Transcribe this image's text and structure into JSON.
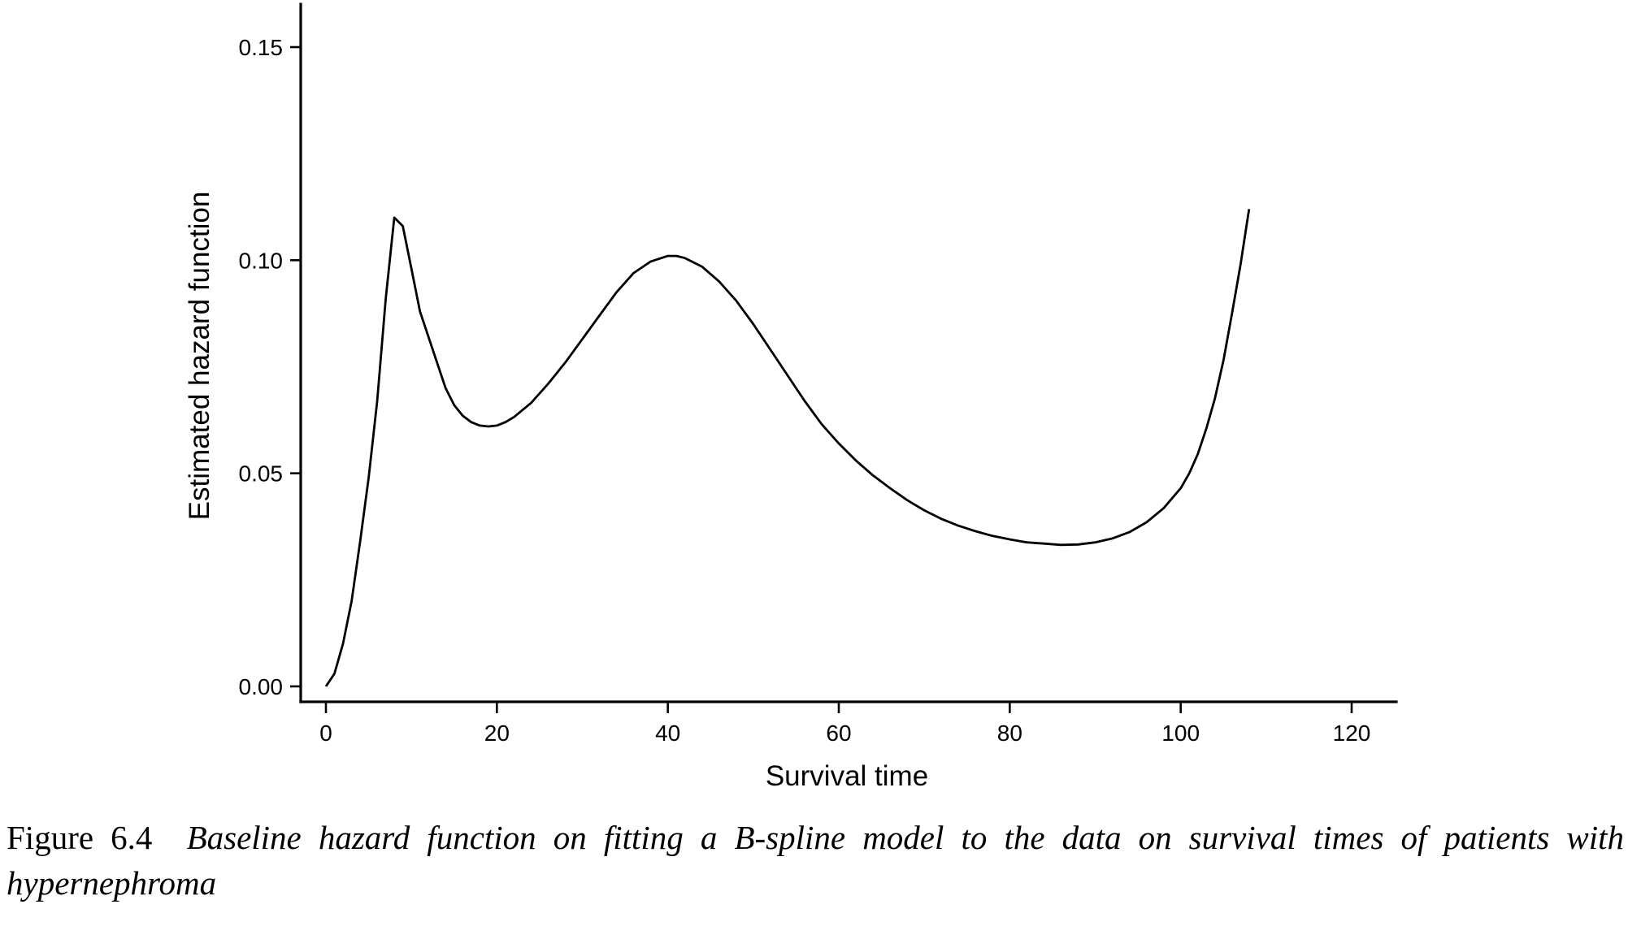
{
  "chart_data": {
    "type": "line",
    "title": "",
    "xlabel": "Survival time",
    "ylabel": "Estimated hazard function",
    "xlim": [
      -3,
      125
    ],
    "ylim": [
      -0.004,
      0.16
    ],
    "xticks": [
      0,
      20,
      40,
      60,
      80,
      100,
      120
    ],
    "yticks": [
      0.0,
      0.05,
      0.1,
      0.15
    ],
    "ytick_labels": [
      "0.00",
      "0.05",
      "0.10",
      "0.15"
    ],
    "grid": false,
    "legend": "none",
    "series": [
      {
        "x": [
          0,
          1,
          2,
          3,
          4,
          5,
          6,
          7,
          8,
          9,
          10,
          11,
          12,
          13,
          14,
          15,
          16,
          17,
          18,
          19,
          20,
          21,
          22,
          24,
          26,
          28,
          30,
          32,
          34,
          36,
          38,
          40,
          41,
          42,
          44,
          46,
          48,
          50,
          52,
          54,
          56,
          58,
          60,
          62,
          64,
          66,
          68,
          70,
          72,
          74,
          76,
          78,
          80,
          82,
          84,
          86,
          88,
          90,
          92,
          94,
          96,
          98,
          100,
          101,
          102,
          103,
          104,
          105,
          106
        ],
        "y": [
          0.0,
          0.003,
          0.01,
          0.02,
          0.034,
          0.049,
          0.067,
          0.091,
          0.11,
          0.108,
          0.098,
          0.088,
          0.082,
          0.076,
          0.07,
          0.066,
          0.0635,
          0.062,
          0.0612,
          0.061,
          0.0612,
          0.062,
          0.0632,
          0.0665,
          0.071,
          0.076,
          0.0815,
          0.087,
          0.0925,
          0.097,
          0.0997,
          0.101,
          0.101,
          0.1005,
          0.0985,
          0.095,
          0.0905,
          0.085,
          0.079,
          0.073,
          0.067,
          0.0615,
          0.057,
          0.053,
          0.0495,
          0.0465,
          0.0437,
          0.0413,
          0.0393,
          0.0377,
          0.0364,
          0.0353,
          0.0345,
          0.0338,
          0.0335,
          0.0332,
          0.0333,
          0.0338,
          0.0347,
          0.0362,
          0.0385,
          0.0418,
          0.0465,
          0.05,
          0.0545,
          0.0605,
          0.0675,
          0.0765,
          0.0875
        ]
      }
    ]
  },
  "caption": {
    "label": "Figure 6.4",
    "text": "Baseline hazard function on fitting a B-spline model to the data on survival times of patients with hypernephroma"
  }
}
